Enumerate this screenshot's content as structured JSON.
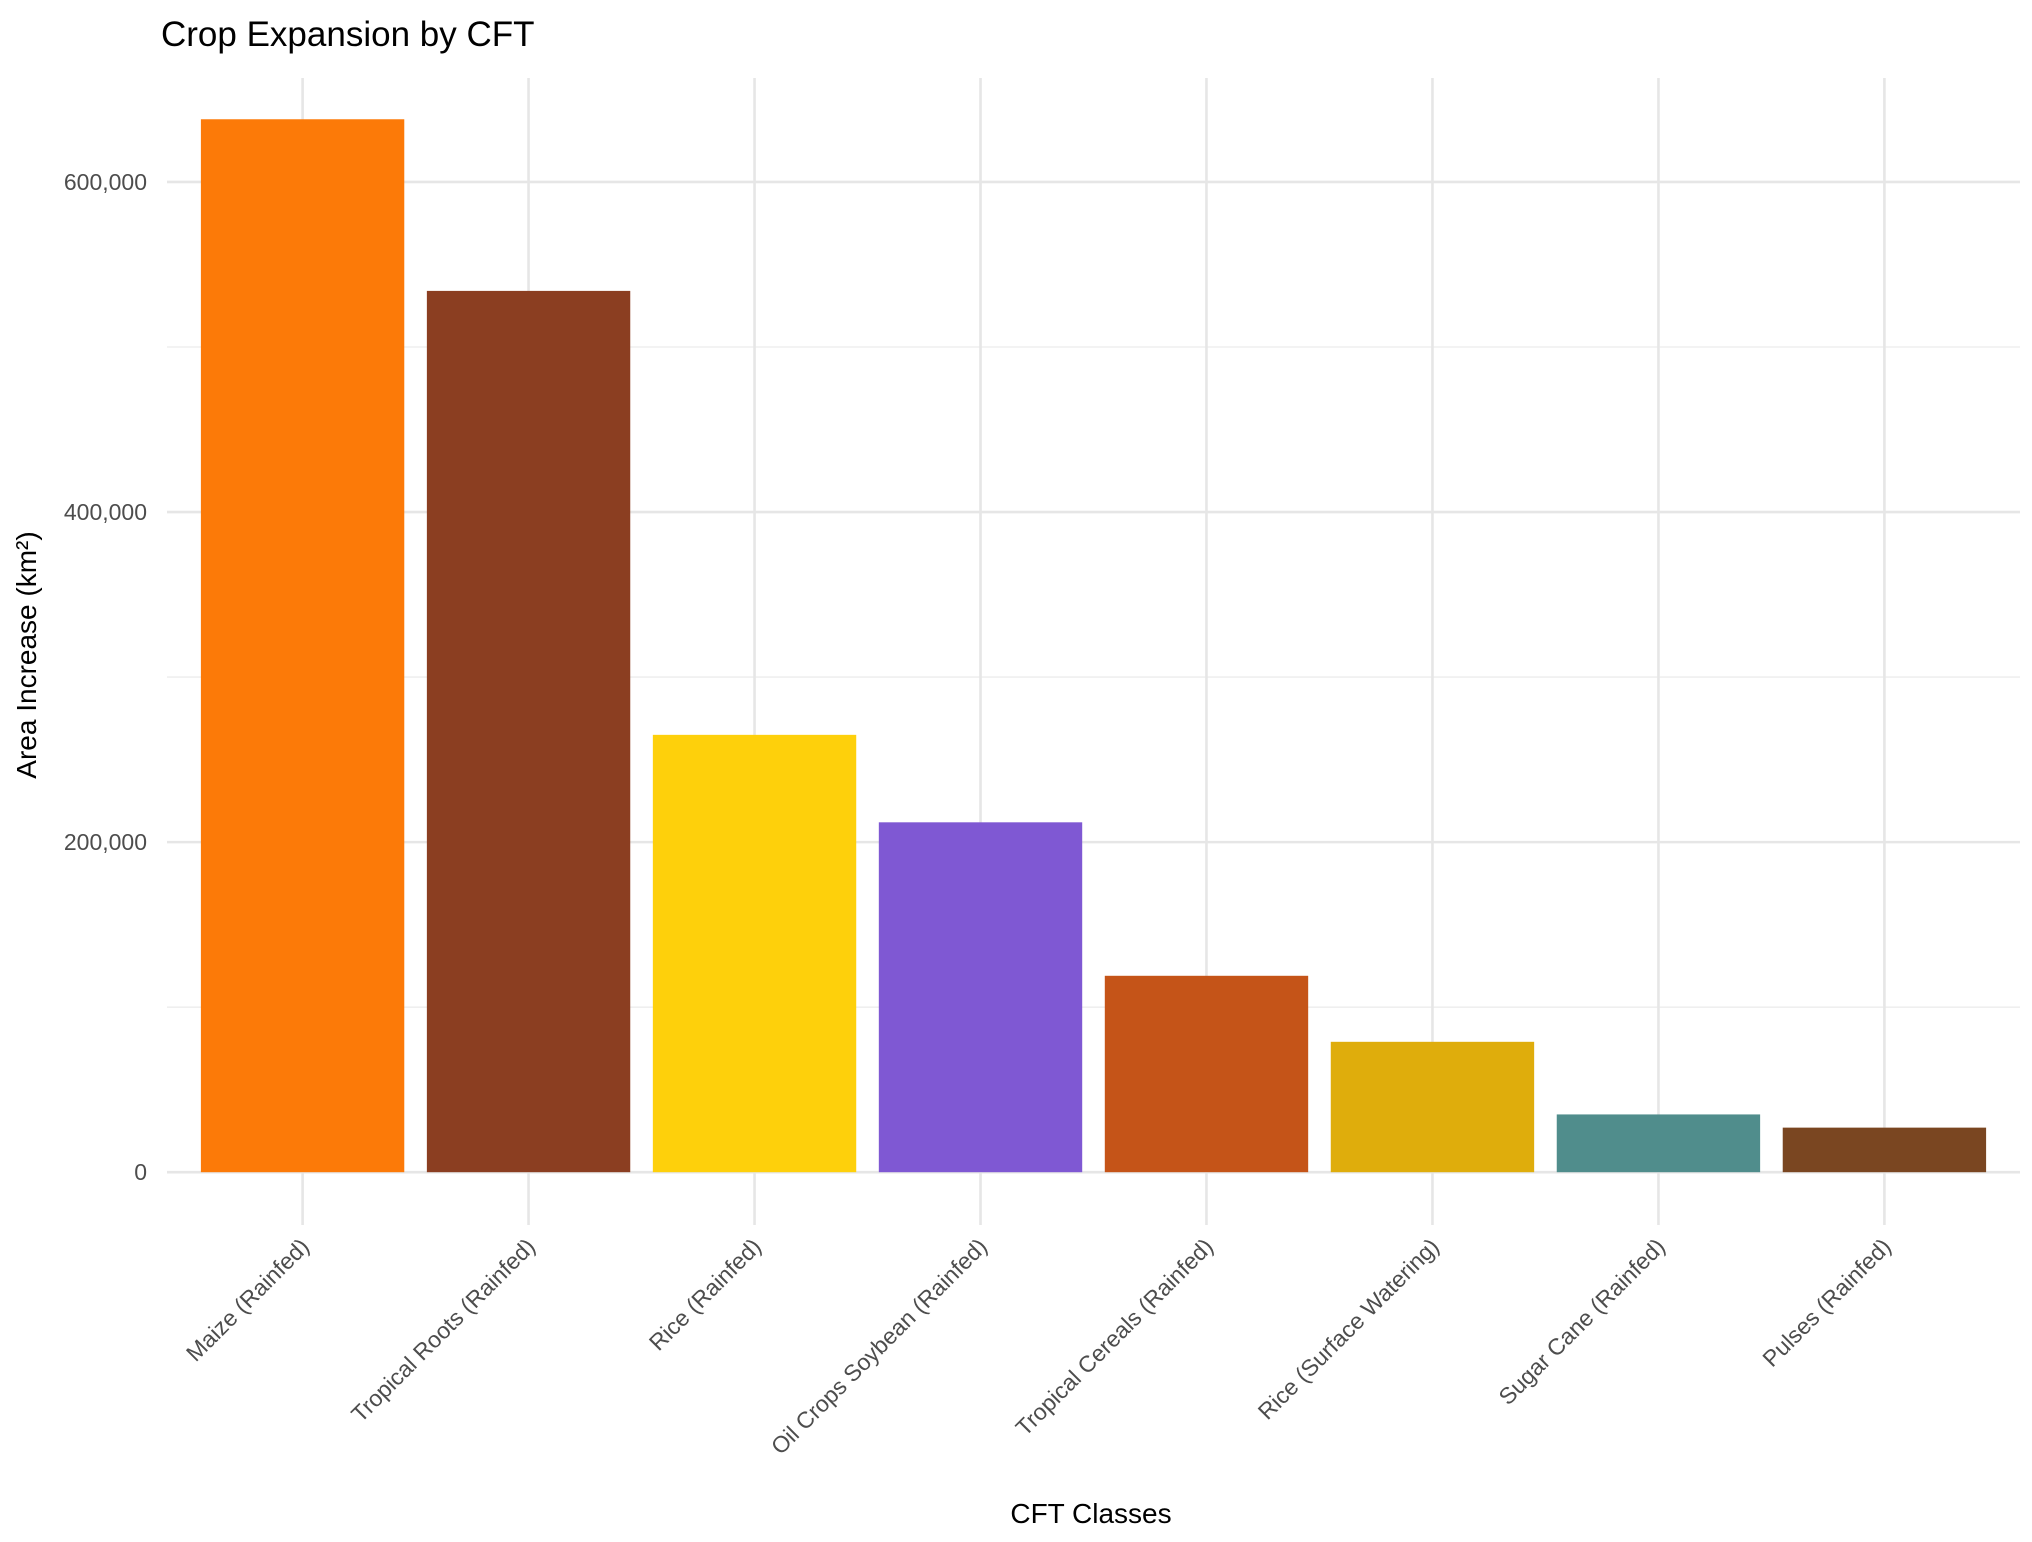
{
  "chart_data": {
    "type": "bar",
    "title": "Crop Expansion by CFT",
    "xlabel": "CFT Classes",
    "ylabel": "Area Increase (km²)",
    "categories": [
      "Maize (Rainfed)",
      "Tropical Roots (Rainfed)",
      "Rice (Rainfed)",
      "Oil Crops Soybean (Rainfed)",
      "Tropical Cereals (Rainfed)",
      "Rice (Surface Watering)",
      "Sugar Cane (Rainfed)",
      "Pulses (Rainfed)"
    ],
    "values": [
      638000,
      534000,
      265000,
      212000,
      119000,
      79000,
      35000,
      27000
    ],
    "colors": [
      "#FC7A08",
      "#8B3E21",
      "#FED00B",
      "#7F58D3",
      "#C55418",
      "#DFAD0C",
      "#508D8C",
      "#7A4621"
    ],
    "ylim": [
      -32000,
      663000
    ],
    "y_ticks": [
      0,
      200000,
      400000,
      600000
    ],
    "y_tick_labels": [
      "0",
      "200,000",
      "400,000",
      "600,000"
    ],
    "y_minor_ticks": [
      100000,
      300000,
      500000
    ],
    "grid": true,
    "legend": "none"
  }
}
